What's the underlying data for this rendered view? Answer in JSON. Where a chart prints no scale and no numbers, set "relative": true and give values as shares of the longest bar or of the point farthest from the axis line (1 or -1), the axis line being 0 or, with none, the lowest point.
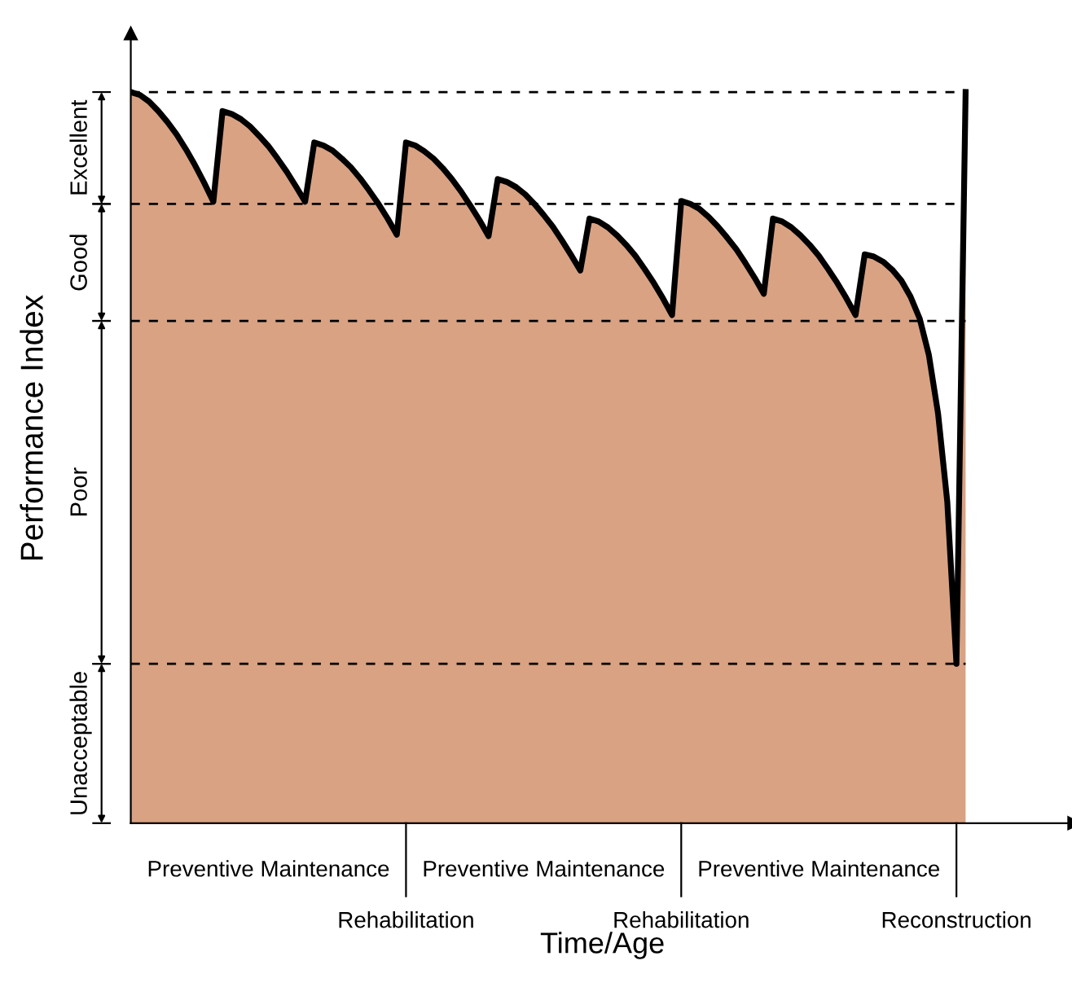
{
  "chart_data": {
    "type": "area",
    "relative": true,
    "xlabel": "Time/Age",
    "ylabel": "Performance Index",
    "tick_labels": "x",
    "legend": false,
    "marker": "none",
    "line_style": "solid",
    "categories": [
      null,
      null,
      null,
      null,
      null,
      null,
      null,
      null,
      null,
      null,
      null,
      null,
      null,
      null,
      null,
      "Preventive Maintenance",
      null,
      null,
      null,
      null,
      null,
      null,
      null,
      null,
      null,
      null,
      null,
      null,
      null,
      null,
      "Rehabilitation",
      null,
      null,
      null,
      null,
      null,
      null,
      null,
      null,
      null,
      null,
      null,
      null,
      null,
      null,
      "Preventive Maintenance",
      null,
      null,
      null,
      null,
      null,
      null,
      null,
      null,
      null,
      null,
      null,
      null,
      null,
      null,
      "Rehabilitation",
      null,
      null,
      null,
      null,
      null,
      null,
      null,
      null,
      null,
      null,
      null,
      null,
      null,
      null,
      "Preventive Maintenance",
      null,
      null,
      null,
      null,
      null,
      null,
      null,
      null,
      null,
      null,
      null,
      null,
      null,
      null,
      "Reconstruction",
      null
    ],
    "series": [
      {
        "color": "#d9a283",
        "values": [
          1.0,
          0.996,
          0.987,
          0.974,
          0.959,
          0.942,
          0.922,
          0.9,
          0.876,
          0.85,
          0.974,
          0.97,
          0.963,
          0.953,
          0.94,
          0.926,
          0.909,
          0.891,
          0.871,
          0.85,
          0.931,
          0.927,
          0.92,
          0.909,
          0.897,
          0.882,
          0.865,
          0.847,
          0.827,
          0.805,
          0.931,
          0.927,
          0.919,
          0.909,
          0.896,
          0.881,
          0.864,
          0.845,
          0.825,
          0.803,
          0.881,
          0.877,
          0.87,
          0.86,
          0.847,
          0.832,
          0.816,
          0.797,
          0.777,
          0.756,
          0.827,
          0.823,
          0.815,
          0.804,
          0.791,
          0.776,
          0.758,
          0.739,
          0.718,
          0.695,
          0.851,
          0.847,
          0.84,
          0.829,
          0.816,
          0.801,
          0.785,
          0.766,
          0.746,
          0.724,
          0.827,
          0.823,
          0.815,
          0.804,
          0.791,
          0.776,
          0.758,
          0.739,
          0.718,
          0.695,
          0.778,
          0.775,
          0.768,
          0.757,
          0.742,
          0.72,
          0.69,
          0.64,
          0.56,
          0.44,
          0.218,
          1.0
        ]
      }
    ],
    "ref_lines": [
      {
        "axis": "y",
        "value": 1.0,
        "line_style": "dashed"
      },
      {
        "axis": "y",
        "value": 0.847,
        "line_style": "dashed"
      },
      {
        "axis": "y",
        "value": 0.687,
        "line_style": "dashed"
      },
      {
        "axis": "y",
        "value": 0.218,
        "line_style": "dashed"
      }
    ],
    "annotations": [
      "Excellent",
      "Good",
      "Poor",
      "Unacceptable"
    ]
  }
}
